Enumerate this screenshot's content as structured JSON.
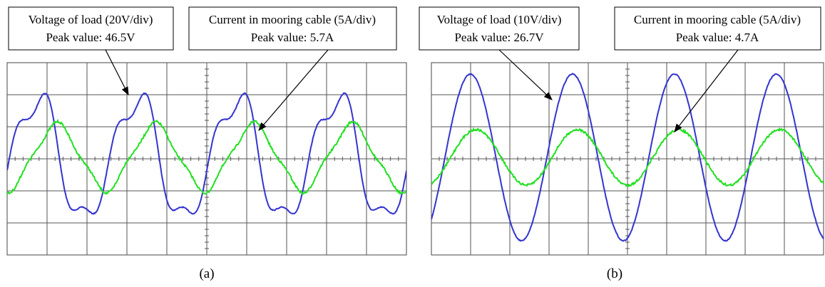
{
  "panels": [
    {
      "label": "(a)",
      "annotations": [
        {
          "lines": [
            "Voltage of load (20V/div)",
            "Peak value: 46.5V"
          ]
        },
        {
          "lines": [
            "Current in mooring cable (5A/div)",
            "Peak value: 5.7A"
          ]
        }
      ]
    },
    {
      "label": "(b)",
      "annotations": [
        {
          "lines": [
            "Voltage of load (10V/div)",
            "Peak value: 26.7V"
          ]
        },
        {
          "lines": [
            "Current in mooring cable (5A/div)",
            "Peak value: 4.7A"
          ]
        }
      ]
    }
  ]
}
